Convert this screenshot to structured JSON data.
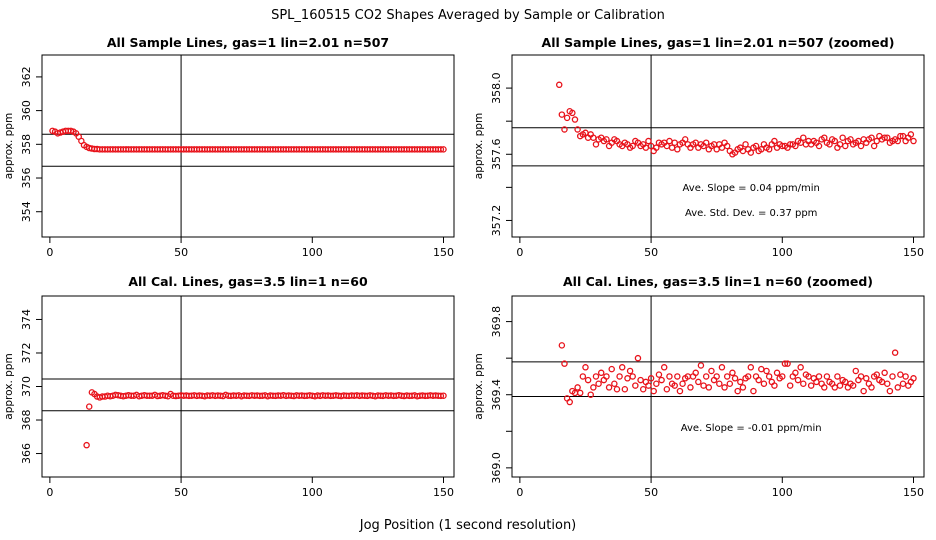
{
  "title": "SPL_160515  CO2 Shapes Averaged by Sample or Calibration",
  "xlabel": "Jog Position (1 second resolution)",
  "chart_data": [
    {
      "type": "scatter",
      "title": "All Sample Lines, gas=1 lin=2.01 n=507",
      "ylabel": "approx. ppm",
      "xlim": [
        -3,
        154
      ],
      "ylim": [
        352.5,
        363.3
      ],
      "xticks": [
        0,
        50,
        100,
        150
      ],
      "yticks": [
        354,
        356,
        358,
        360,
        362
      ],
      "vline": 50,
      "hlines": [
        358.6,
        356.7
      ],
      "annotations": [],
      "x": [
        1,
        2,
        3,
        4,
        5,
        6,
        7,
        8,
        9,
        10,
        11,
        12,
        13,
        14,
        15,
        16,
        17,
        18,
        19,
        20,
        21,
        22,
        23,
        24,
        25,
        26,
        27,
        28,
        29,
        30,
        31,
        32,
        33,
        34,
        35,
        36,
        37,
        38,
        39,
        40,
        41,
        42,
        43,
        44,
        45,
        46,
        47,
        48,
        49,
        50,
        51,
        52,
        53,
        54,
        55,
        56,
        57,
        58,
        59,
        60,
        61,
        62,
        63,
        64,
        65,
        66,
        67,
        68,
        69,
        70,
        71,
        72,
        73,
        74,
        75,
        76,
        77,
        78,
        79,
        80,
        81,
        82,
        83,
        84,
        85,
        86,
        87,
        88,
        89,
        90,
        91,
        92,
        93,
        94,
        95,
        96,
        97,
        98,
        99,
        100,
        101,
        102,
        103,
        104,
        105,
        106,
        107,
        108,
        109,
        110,
        111,
        112,
        113,
        114,
        115,
        116,
        117,
        118,
        119,
        120,
        121,
        122,
        123,
        124,
        125,
        126,
        127,
        128,
        129,
        130,
        131,
        132,
        133,
        134,
        135,
        136,
        137,
        138,
        139,
        140,
        141,
        142,
        143,
        144,
        145,
        146,
        147,
        148,
        149,
        150
      ],
      "y": [
        358.8,
        358.75,
        358.65,
        358.7,
        358.75,
        358.8,
        358.8,
        358.8,
        358.75,
        358.65,
        358.45,
        358.2,
        357.95,
        357.85,
        357.78,
        357.75,
        357.72,
        357.72,
        357.7,
        357.7,
        357.7,
        357.7,
        357.7,
        357.7,
        357.7,
        357.7,
        357.7,
        357.7,
        357.7,
        357.7,
        357.7,
        357.7,
        357.7,
        357.7,
        357.7,
        357.7,
        357.7,
        357.7,
        357.7,
        357.7,
        357.7,
        357.7,
        357.7,
        357.7,
        357.7,
        357.7,
        357.7,
        357.7,
        357.7,
        357.7,
        357.7,
        357.7,
        357.7,
        357.7,
        357.7,
        357.7,
        357.7,
        357.7,
        357.7,
        357.7,
        357.7,
        357.7,
        357.7,
        357.7,
        357.7,
        357.7,
        357.7,
        357.7,
        357.7,
        357.7,
        357.7,
        357.7,
        357.7,
        357.7,
        357.7,
        357.7,
        357.7,
        357.7,
        357.7,
        357.7,
        357.7,
        357.7,
        357.7,
        357.7,
        357.7,
        357.7,
        357.7,
        357.7,
        357.7,
        357.7,
        357.7,
        357.7,
        357.7,
        357.7,
        357.7,
        357.7,
        357.7,
        357.7,
        357.7,
        357.7,
        357.7,
        357.7,
        357.7,
        357.7,
        357.7,
        357.7,
        357.7,
        357.7,
        357.7,
        357.7,
        357.7,
        357.7,
        357.7,
        357.7,
        357.7,
        357.7,
        357.7,
        357.7,
        357.7,
        357.7,
        357.7,
        357.7,
        357.7,
        357.7,
        357.7,
        357.7,
        357.7,
        357.7,
        357.7,
        357.7,
        357.7,
        357.7,
        357.7,
        357.7,
        357.7,
        357.7,
        357.7,
        357.7,
        357.7,
        357.7,
        357.7,
        357.7,
        357.7,
        357.7,
        357.7,
        357.7,
        357.7,
        357.7,
        357.7,
        357.7
      ]
    },
    {
      "type": "scatter",
      "title": "All Sample Lines, gas=1 lin=2.01 n=507 (zoomed)",
      "ylabel": "approx. ppm",
      "xlim": [
        -3,
        154
      ],
      "ylim": [
        357.1,
        358.2
      ],
      "xticks": [
        0,
        50,
        100,
        150
      ],
      "yticks": [
        357.2,
        357.4,
        357.6,
        357.8,
        358.0
      ],
      "ytick_labels": [
        "357.2",
        "",
        "357.6",
        "",
        "358.0"
      ],
      "vline": 50,
      "hlines": [
        357.76,
        357.53
      ],
      "annotations": [
        "Ave. Slope =  0.04  ppm/min",
        "Ave. Std. Dev. =  0.37  ppm"
      ],
      "x": [
        15,
        16,
        17,
        18,
        19,
        20,
        21,
        22,
        23,
        24,
        25,
        26,
        27,
        28,
        29,
        30,
        31,
        32,
        33,
        34,
        35,
        36,
        37,
        38,
        39,
        40,
        41,
        42,
        43,
        44,
        45,
        46,
        47,
        48,
        49,
        50,
        51,
        52,
        53,
        54,
        55,
        56,
        57,
        58,
        59,
        60,
        61,
        62,
        63,
        64,
        65,
        66,
        67,
        68,
        69,
        70,
        71,
        72,
        73,
        74,
        75,
        76,
        77,
        78,
        79,
        80,
        81,
        82,
        83,
        84,
        85,
        86,
        87,
        88,
        89,
        90,
        91,
        92,
        93,
        94,
        95,
        96,
        97,
        98,
        99,
        100,
        101,
        102,
        103,
        104,
        105,
        106,
        107,
        108,
        109,
        110,
        111,
        112,
        113,
        114,
        115,
        116,
        117,
        118,
        119,
        120,
        121,
        122,
        123,
        124,
        125,
        126,
        127,
        128,
        129,
        130,
        131,
        132,
        133,
        134,
        135,
        136,
        137,
        138,
        139,
        140,
        141,
        142,
        143,
        144,
        145,
        146,
        147,
        148,
        149,
        150
      ],
      "y": [
        358.02,
        357.84,
        357.75,
        357.82,
        357.86,
        357.85,
        357.81,
        357.75,
        357.71,
        357.72,
        357.73,
        357.7,
        357.72,
        357.7,
        357.66,
        357.69,
        357.7,
        357.68,
        357.69,
        357.65,
        357.67,
        357.69,
        357.68,
        357.66,
        357.65,
        357.67,
        357.66,
        357.64,
        357.65,
        357.68,
        357.67,
        357.65,
        357.66,
        357.64,
        357.68,
        357.65,
        357.62,
        357.64,
        357.67,
        357.66,
        357.67,
        357.65,
        357.68,
        357.64,
        357.67,
        357.63,
        357.66,
        357.67,
        357.69,
        357.66,
        357.64,
        357.66,
        357.67,
        357.64,
        357.66,
        357.65,
        357.67,
        357.63,
        357.65,
        357.66,
        357.63,
        357.66,
        357.64,
        357.67,
        357.65,
        357.62,
        357.6,
        357.61,
        357.63,
        357.64,
        357.62,
        357.66,
        357.63,
        357.61,
        357.64,
        357.65,
        357.62,
        357.63,
        357.66,
        357.64,
        357.63,
        357.66,
        357.68,
        357.64,
        357.66,
        357.65,
        357.65,
        357.64,
        357.66,
        357.66,
        357.65,
        357.68,
        357.67,
        357.7,
        357.66,
        357.68,
        357.66,
        357.68,
        357.67,
        357.65,
        357.69,
        357.7,
        357.67,
        357.66,
        357.69,
        357.68,
        357.64,
        357.66,
        357.7,
        357.65,
        357.68,
        357.69,
        357.66,
        357.67,
        357.68,
        357.65,
        357.69,
        357.67,
        357.69,
        357.7,
        357.65,
        357.68,
        357.71,
        357.69,
        357.7,
        357.7,
        357.67,
        357.68,
        357.69,
        357.68,
        357.71,
        357.71,
        357.68,
        357.7,
        357.72,
        357.68
      ]
    },
    {
      "type": "scatter",
      "title": "All Cal. Lines, gas=3.5 lin=1 n=60",
      "ylabel": "approx. ppm",
      "xlim": [
        -3,
        154
      ],
      "ylim": [
        364.6,
        375.4
      ],
      "xticks": [
        0,
        50,
        100,
        150
      ],
      "yticks": [
        366,
        368,
        370,
        372,
        374
      ],
      "vline": 50,
      "hlines": [
        370.45,
        368.55
      ],
      "annotations": [],
      "x": [
        14,
        15,
        16,
        17,
        18,
        19,
        20,
        21,
        22,
        23,
        24,
        25,
        26,
        27,
        28,
        29,
        30,
        31,
        32,
        33,
        34,
        35,
        36,
        37,
        38,
        39,
        40,
        41,
        42,
        43,
        44,
        45,
        46,
        47,
        48,
        49,
        50,
        51,
        52,
        53,
        54,
        55,
        56,
        57,
        58,
        59,
        60,
        61,
        62,
        63,
        64,
        65,
        66,
        67,
        68,
        69,
        70,
        71,
        72,
        73,
        74,
        75,
        76,
        77,
        78,
        79,
        80,
        81,
        82,
        83,
        84,
        85,
        86,
        87,
        88,
        89,
        90,
        91,
        92,
        93,
        94,
        95,
        96,
        97,
        98,
        99,
        100,
        101,
        102,
        103,
        104,
        105,
        106,
        107,
        108,
        109,
        110,
        111,
        112,
        113,
        114,
        115,
        116,
        117,
        118,
        119,
        120,
        121,
        122,
        123,
        124,
        125,
        126,
        127,
        128,
        129,
        130,
        131,
        132,
        133,
        134,
        135,
        136,
        137,
        138,
        139,
        140,
        141,
        142,
        143,
        144,
        145,
        146,
        147,
        148,
        149,
        150
      ],
      "y": [
        366.5,
        368.8,
        369.65,
        369.55,
        369.4,
        369.35,
        369.4,
        369.4,
        369.45,
        369.42,
        369.45,
        369.5,
        369.48,
        369.45,
        369.42,
        369.45,
        369.48,
        369.45,
        369.45,
        369.5,
        369.42,
        369.45,
        369.48,
        369.45,
        369.45,
        369.45,
        369.5,
        369.43,
        369.45,
        369.48,
        369.45,
        369.42,
        369.55,
        369.45,
        369.43,
        369.45,
        369.47,
        369.45,
        369.46,
        369.44,
        369.45,
        369.47,
        369.44,
        369.46,
        369.45,
        369.42,
        369.46,
        369.45,
        369.47,
        369.44,
        369.46,
        369.45,
        369.43,
        369.5,
        369.45,
        369.44,
        369.46,
        369.45,
        369.47,
        369.42,
        369.46,
        369.45,
        369.44,
        369.47,
        369.45,
        369.46,
        369.44,
        369.45,
        369.47,
        369.42,
        369.46,
        369.45,
        369.44,
        369.46,
        369.45,
        369.48,
        369.44,
        369.46,
        369.45,
        369.43,
        369.47,
        369.45,
        369.46,
        369.44,
        369.45,
        369.47,
        369.45,
        369.42,
        369.46,
        369.44,
        369.47,
        369.45,
        369.46,
        369.44,
        369.45,
        369.47,
        369.45,
        369.43,
        369.46,
        369.45,
        369.44,
        369.46,
        369.45,
        369.47,
        369.44,
        369.46,
        369.45,
        369.44,
        369.47,
        369.45,
        369.42,
        369.46,
        369.45,
        369.44,
        369.47,
        369.45,
        369.46,
        369.44,
        369.45,
        369.48,
        369.45,
        369.43,
        369.46,
        369.44,
        369.45,
        369.47,
        369.42,
        369.45,
        369.46,
        369.44,
        369.45,
        369.47,
        369.45,
        369.46,
        369.45,
        369.44,
        369.45
      ]
    },
    {
      "type": "scatter",
      "title": "All Cal. Lines, gas=3.5 lin=1 n=60 (zoomed)",
      "ylabel": "approx. ppm",
      "xlim": [
        -3,
        154
      ],
      "ylim": [
        368.95,
        369.94
      ],
      "xticks": [
        0,
        50,
        100,
        150
      ],
      "yticks": [
        369.0,
        369.2,
        369.4,
        369.6,
        369.8
      ],
      "ytick_labels": [
        "369.0",
        "",
        "369.4",
        "",
        "369.8"
      ],
      "vline": 50,
      "hlines": [
        369.58,
        369.39
      ],
      "annotations": [
        "Ave. Slope =  -0.01  ppm/min"
      ],
      "x": [
        16,
        17,
        18,
        19,
        20,
        21,
        22,
        23,
        24,
        25,
        26,
        27,
        28,
        29,
        30,
        31,
        32,
        33,
        34,
        35,
        36,
        37,
        38,
        39,
        40,
        41,
        42,
        43,
        44,
        45,
        46,
        47,
        48,
        49,
        50,
        51,
        52,
        53,
        54,
        55,
        56,
        57,
        58,
        59,
        60,
        61,
        62,
        63,
        64,
        65,
        66,
        67,
        68,
        69,
        70,
        71,
        72,
        73,
        74,
        75,
        76,
        77,
        78,
        79,
        80,
        81,
        82,
        83,
        84,
        85,
        86,
        87,
        88,
        89,
        90,
        91,
        92,
        93,
        94,
        95,
        96,
        97,
        98,
        99,
        100,
        101,
        102,
        103,
        104,
        105,
        106,
        107,
        108,
        109,
        110,
        111,
        112,
        113,
        114,
        115,
        116,
        117,
        118,
        119,
        120,
        121,
        122,
        123,
        124,
        125,
        126,
        127,
        128,
        129,
        130,
        131,
        132,
        133,
        134,
        135,
        136,
        137,
        138,
        139,
        140,
        141,
        142,
        143,
        144,
        145,
        146,
        147,
        148,
        149,
        150
      ],
      "y": [
        369.67,
        369.57,
        369.38,
        369.36,
        369.42,
        369.41,
        369.44,
        369.41,
        369.5,
        369.55,
        369.48,
        369.4,
        369.44,
        369.5,
        369.46,
        369.52,
        369.48,
        369.5,
        369.44,
        369.54,
        369.46,
        369.43,
        369.5,
        369.55,
        369.43,
        369.49,
        369.53,
        369.5,
        369.45,
        369.6,
        369.48,
        369.43,
        369.47,
        369.45,
        369.49,
        369.42,
        369.46,
        369.51,
        369.48,
        369.55,
        369.43,
        369.5,
        369.46,
        369.45,
        369.5,
        369.42,
        369.46,
        369.49,
        369.5,
        369.44,
        369.5,
        369.52,
        369.47,
        369.56,
        369.45,
        369.5,
        369.44,
        369.53,
        369.48,
        369.5,
        369.46,
        369.55,
        369.44,
        369.5,
        369.46,
        369.52,
        369.49,
        369.42,
        369.47,
        369.44,
        369.49,
        369.5,
        369.55,
        369.42,
        369.5,
        369.48,
        369.54,
        369.46,
        369.53,
        369.5,
        369.47,
        369.45,
        369.52,
        369.49,
        369.5,
        369.57,
        369.57,
        369.45,
        369.5,
        369.52,
        369.48,
        369.55,
        369.46,
        369.51,
        369.5,
        369.45,
        369.49,
        369.47,
        369.5,
        369.46,
        369.44,
        369.5,
        369.47,
        369.46,
        369.44,
        369.5,
        369.45,
        369.48,
        369.47,
        369.44,
        369.46,
        369.45,
        369.53,
        369.48,
        369.5,
        369.42,
        369.49,
        369.46,
        369.44,
        369.5,
        369.51,
        369.48,
        369.47,
        369.52,
        369.46,
        369.42,
        369.5,
        369.63,
        369.44,
        369.51,
        369.46,
        369.5,
        369.45,
        369.47,
        369.49
      ]
    }
  ]
}
